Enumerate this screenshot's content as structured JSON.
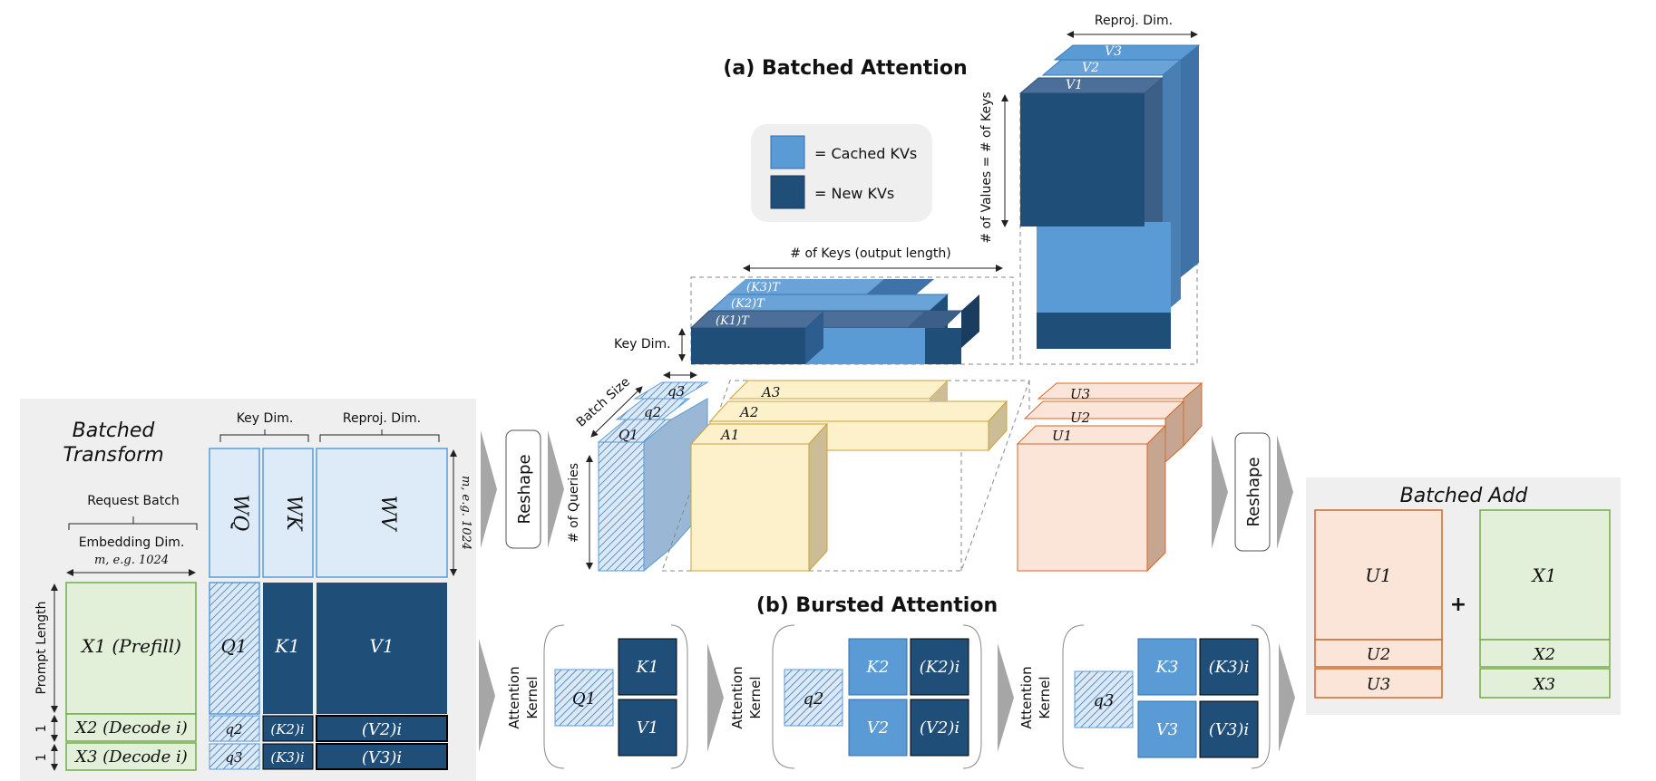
{
  "titles": {
    "batched_attention": "(a) Batched Attention",
    "bursted_attention": "(b) Bursted Attention",
    "batched_transform_1": "Batched",
    "batched_transform_2": "Transform",
    "batched_add": "Batched Add"
  },
  "legend": {
    "cached": "= Cached KVs",
    "new": "= New KVs"
  },
  "colors": {
    "cached": "#5b9bd5",
    "new": "#1f4e79",
    "query_fill": "#dbe8f6",
    "attn_fill": "#fdf1cc",
    "attn_stroke": "#c9a23a",
    "out_fill": "#fbe5d8",
    "out_stroke": "#d0692a",
    "input_fill": "#e2efd9",
    "input_stroke": "#70ad47",
    "weight_fill": "#ddeaf7",
    "panel_bg": "#efefef",
    "arrow": "#a6a6a6"
  },
  "transform": {
    "request_batch": "Request Batch",
    "embedding_dim": "Embedding Dim.",
    "m_label": "m, e.g. 1024",
    "key_dim": "Key Dim.",
    "reproj_dim": "Reproj. Dim.",
    "m_vertical": "m, e.g. 1024",
    "prompt_length": "Prompt Length",
    "one_a": "1",
    "one_b": "1",
    "x1": "X1 (Prefill)",
    "x2": "X2 (Decode i)",
    "x3": "X3 (Decode i)",
    "wq": "WQ",
    "wk": "WK",
    "wv": "WV",
    "q1": "Q1",
    "q2": "q2",
    "q3": "q3",
    "k1": "K1",
    "k2": "(K2)i",
    "k3": "(K3)i",
    "v1": "V1",
    "v2": "(V2)i",
    "v3": "(V3)i"
  },
  "attention3d": {
    "reproj_dim": "Reproj. Dim.",
    "num_values": "# of Values = # of Keys",
    "num_keys": "# of Keys (output length)",
    "key_dim": "Key Dim.",
    "batch_size": "Batch Size",
    "num_queries": "# of Queries",
    "v1": "V1",
    "v2": "V2",
    "v3": "V3",
    "k1t": "(K1)T",
    "k2t": "(K2)T",
    "k3t": "(K3)T",
    "q1": "Q1",
    "q2": "q2",
    "q3": "q3",
    "a1": "A1",
    "a2": "A2",
    "a3": "A3",
    "u1": "U1",
    "u2": "U2",
    "u3": "U3"
  },
  "reshape": "Reshape",
  "reshape2": "Reshape",
  "kernels": [
    {
      "label1": "Attention",
      "label2": "Kernel",
      "q": "Q1",
      "k": "K1",
      "v": "V1"
    },
    {
      "label1": "Attention",
      "label2": "Kernel",
      "q": "q2",
      "k": "K2",
      "ki": "(K2)i",
      "v": "V2",
      "vi": "(V2)i"
    },
    {
      "label1": "Attention",
      "label2": "Kernel",
      "q": "q3",
      "k": "K3",
      "ki": "(K3)i",
      "v": "V3",
      "vi": "(V3)i"
    }
  ],
  "add": {
    "u1": "U1",
    "u2": "U2",
    "u3": "U3",
    "x1": "X1",
    "x2": "X2",
    "x3": "X3",
    "plus": "+"
  }
}
